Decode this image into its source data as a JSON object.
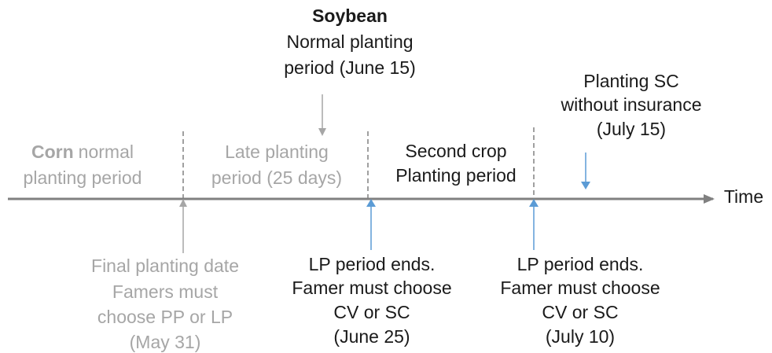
{
  "corn": {
    "title": "Corn",
    "lines": [
      "normal",
      "planting period"
    ]
  },
  "late_planting": {
    "lines": [
      "Late planting",
      "period (25 days)"
    ]
  },
  "soybean": {
    "title": "Soybean",
    "lines": [
      "Normal planting",
      "period (June 15)"
    ]
  },
  "second_crop": {
    "lines": [
      "Second crop",
      "Planting period"
    ]
  },
  "planting_sc": {
    "lines": [
      "Planting SC",
      "without insurance",
      "(July 15)"
    ]
  },
  "axis_label": "Time",
  "final_planting": {
    "lines": [
      "Final planting date",
      "Famers must",
      "choose PP or LP",
      "(May 31)"
    ]
  },
  "lp_end_1": {
    "lines": [
      "LP period ends.",
      "Famer must choose",
      "CV or SC",
      "(June 25)"
    ]
  },
  "lp_end_2": {
    "lines": [
      "LP period ends.",
      "Famer must choose",
      "CV or SC",
      "(July 10)"
    ]
  }
}
